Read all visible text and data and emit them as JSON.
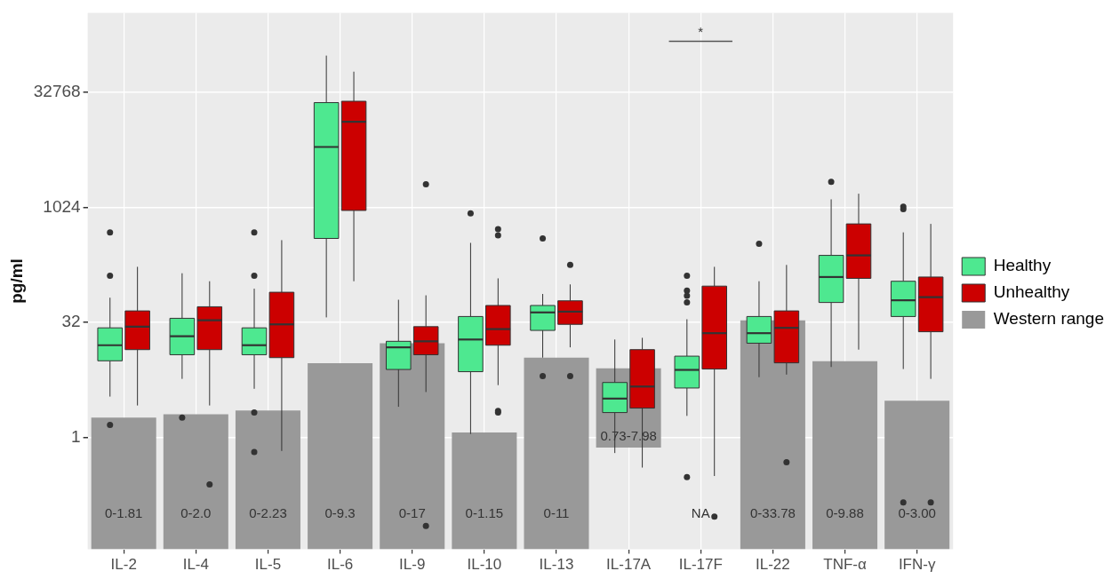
{
  "chart_data": {
    "type": "box",
    "ylabel": "pg/ml",
    "log": true,
    "grid": true,
    "legend": "right",
    "categories": [
      "IL-2",
      "IL-4",
      "IL-5",
      "IL-6",
      "IL-9",
      "IL-10",
      "IL-13",
      "IL-17A",
      "IL-17F",
      "IL-22",
      "TNF-α",
      "IFN-γ"
    ],
    "ylim": [
      0.034,
      360000
    ],
    "yticks": [
      1,
      32,
      1024,
      32768
    ],
    "annotations": [
      "*"
    ],
    "series": [
      {
        "name": "Western range",
        "type": "bar",
        "color": "#999999",
        "values": [
          1.81,
          2.0,
          2.23,
          9.3,
          17,
          1.15,
          11,
          7.25,
          null,
          33.78,
          9.88,
          3.0
        ],
        "base": [
          null,
          null,
          null,
          null,
          null,
          null,
          null,
          0.73,
          null,
          null,
          null,
          null
        ],
        "value_labels": [
          "0-1.81",
          "0-2.0",
          "0-2.23",
          "0-9.3",
          "0-17",
          "0-1.15",
          "0-11",
          "0.73-7.98",
          "NA",
          "0-33.78",
          "0-9.88",
          "0-3.00"
        ]
      },
      {
        "name": "Healthy",
        "color": "#4ee890",
        "boxes": [
          {
            "low": 3.4,
            "q1": 10,
            "median": 16,
            "q3": 27,
            "high": 67,
            "outliers": [
              480,
              130,
              1.45
            ]
          },
          {
            "low": 5.8,
            "q1": 12,
            "median": 21,
            "q3": 36,
            "high": 140,
            "outliers": [
              1.8
            ]
          },
          {
            "low": 4.3,
            "q1": 12,
            "median": 16,
            "q3": 27,
            "high": 88,
            "outliers": [
              480,
              130,
              2.1,
              0.64
            ]
          },
          {
            "low": 37,
            "q1": 400,
            "median": 6300,
            "q3": 24000,
            "high": 99000
          },
          {
            "low": 2.5,
            "q1": 7.7,
            "median": 15,
            "q3": 18,
            "high": 63
          },
          {
            "low": 1.1,
            "q1": 7.2,
            "median": 19,
            "q3": 38,
            "high": 350,
            "outliers": [
              850
            ]
          },
          {
            "low": 11,
            "q1": 25,
            "median": 43,
            "q3": 53,
            "high": 75,
            "outliers": [
              400,
              6.3
            ]
          },
          {
            "low": 0.62,
            "q1": 2.1,
            "median": 3.2,
            "q3": 5.2,
            "high": 19
          },
          {
            "low": 1.9,
            "q1": 4.4,
            "median": 7.6,
            "q3": 11.5,
            "high": 35,
            "outliers": [
              130,
              83,
              71,
              58,
              0.3
            ]
          },
          {
            "low": 6.1,
            "q1": 17,
            "median": 23,
            "q3": 38,
            "high": 110,
            "outliers": [
              340
            ]
          },
          {
            "low": 8.3,
            "q1": 58,
            "median": 125,
            "q3": 240,
            "high": 1300,
            "outliers": [
              2200
            ]
          },
          {
            "low": 7.8,
            "q1": 38,
            "median": 62,
            "q3": 110,
            "high": 480,
            "outliers": [
              1040,
              970,
              0.14
            ]
          }
        ]
      },
      {
        "name": "Unhealthy",
        "color": "#cc0000",
        "boxes": [
          {
            "low": 2.6,
            "q1": 14,
            "median": 28,
            "q3": 45,
            "high": 170
          },
          {
            "low": 2.6,
            "q1": 14,
            "median": 34,
            "q3": 51,
            "high": 110,
            "outliers": [
              0.24
            ]
          },
          {
            "low": 0.66,
            "q1": 11,
            "median": 30,
            "q3": 79,
            "high": 380
          },
          {
            "low": 110,
            "q1": 930,
            "median": 13500,
            "q3": 25000,
            "high": 61000
          },
          {
            "low": 3.9,
            "q1": 12,
            "median": 18,
            "q3": 28,
            "high": 72,
            "outliers": [
              2050,
              0.069
            ]
          },
          {
            "low": 4.8,
            "q1": 16,
            "median": 26,
            "q3": 53,
            "high": 120,
            "outliers": [
              530,
              440,
              2.2,
              2.1
            ]
          },
          {
            "low": 15,
            "q1": 30,
            "median": 44,
            "q3": 61,
            "high": 100,
            "outliers": [
              180,
              6.3
            ]
          },
          {
            "low": 0.4,
            "q1": 2.4,
            "median": 4.6,
            "q3": 14,
            "high": 20
          },
          {
            "low": 0.31,
            "q1": 7.8,
            "median": 23,
            "q3": 95,
            "high": 170,
            "outliers": [
              0.091
            ]
          },
          {
            "low": 6.6,
            "q1": 9.4,
            "median": 27,
            "q3": 45,
            "high": 180,
            "outliers": [
              0.47
            ]
          },
          {
            "low": 14,
            "q1": 120,
            "median": 240,
            "q3": 620,
            "high": 1540
          },
          {
            "low": 5.8,
            "q1": 24,
            "median": 68,
            "q3": 125,
            "high": 620,
            "outliers": [
              0.14
            ]
          }
        ]
      }
    ]
  }
}
